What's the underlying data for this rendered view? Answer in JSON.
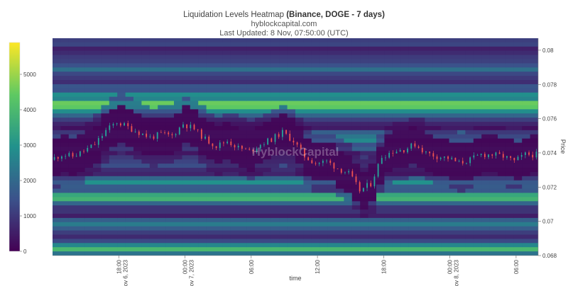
{
  "header": {
    "title_prefix": "Liquidation Levels Heatmap",
    "title_strong": "(Binance, DOGE - 7 days)",
    "site": "hyblockcapital.com",
    "updated": "Last Updated: 8 Nov, 07:50:00 (UTC)"
  },
  "watermark": "HyblockCapital",
  "chart_data": {
    "type": "heatmap",
    "xlabel": "time",
    "ylabel": "Price",
    "ylim": [
      0.068,
      0.0807
    ],
    "yticks": [
      "0.08",
      "0.078",
      "0.076",
      "0.074",
      "0.072",
      "0.07",
      "0.068"
    ],
    "xticks": [
      {
        "time": "18:00",
        "date": "Nov 6, 2023"
      },
      {
        "time": "00:00",
        "date": "Nov 7, 2023"
      },
      {
        "time": "06:00",
        "date": ""
      },
      {
        "time": "12:00",
        "date": ""
      },
      {
        "time": "18:00",
        "date": ""
      },
      {
        "time": "00:00",
        "date": "Nov 8, 2023"
      },
      {
        "time": "06:00",
        "date": ""
      }
    ],
    "colorbar": {
      "range": [
        0,
        5900
      ],
      "ticks": [
        "0",
        "1000",
        "2000",
        "3000",
        "4000",
        "5000"
      ],
      "colors": [
        "#440154",
        "#3b528b",
        "#21918c",
        "#5ec962",
        "#fde725"
      ]
    },
    "candles": {
      "interval": "1h",
      "start": "Nov 6, 2023 12:00",
      "end": "Nov 8, 2023 07:00"
    },
    "price_path": [
      {
        "t": "Nov 6 12:00",
        "p": 0.0736
      },
      {
        "t": "Nov 6 13:00",
        "p": 0.0739
      },
      {
        "t": "Nov 6 14:00",
        "p": 0.0738
      },
      {
        "t": "Nov 6 15:00",
        "p": 0.0741
      },
      {
        "t": "Nov 6 16:00",
        "p": 0.0745
      },
      {
        "t": "Nov 6 17:00",
        "p": 0.0753
      },
      {
        "t": "Nov 6 18:00",
        "p": 0.0758
      },
      {
        "t": "Nov 6 19:00",
        "p": 0.0755
      },
      {
        "t": "Nov 6 20:00",
        "p": 0.0752
      },
      {
        "t": "Nov 6 21:00",
        "p": 0.0749
      },
      {
        "t": "Nov 6 22:00",
        "p": 0.0751
      },
      {
        "t": "Nov 6 23:00",
        "p": 0.075
      },
      {
        "t": "Nov 7 00:00",
        "p": 0.0757
      },
      {
        "t": "Nov 7 01:00",
        "p": 0.0754
      },
      {
        "t": "Nov 7 02:00",
        "p": 0.0748
      },
      {
        "t": "Nov 7 03:00",
        "p": 0.0744
      },
      {
        "t": "Nov 7 04:00",
        "p": 0.0747
      },
      {
        "t": "Nov 7 05:00",
        "p": 0.0743
      },
      {
        "t": "Nov 7 06:00",
        "p": 0.0741
      },
      {
        "t": "Nov 7 07:00",
        "p": 0.0745
      },
      {
        "t": "Nov 7 08:00",
        "p": 0.0748
      },
      {
        "t": "Nov 7 09:00",
        "p": 0.0752
      },
      {
        "t": "Nov 7 10:00",
        "p": 0.0747
      },
      {
        "t": "Nov 7 11:00",
        "p": 0.0738
      },
      {
        "t": "Nov 7 12:00",
        "p": 0.0734
      },
      {
        "t": "Nov 7 13:00",
        "p": 0.0735
      },
      {
        "t": "Nov 7 14:00",
        "p": 0.0731
      },
      {
        "t": "Nov 7 15:00",
        "p": 0.0728
      },
      {
        "t": "Nov 7 16:00",
        "p": 0.0718
      },
      {
        "t": "Nov 7 17:00",
        "p": 0.0722
      },
      {
        "t": "Nov 7 18:00",
        "p": 0.0738
      },
      {
        "t": "Nov 7 19:00",
        "p": 0.0741
      },
      {
        "t": "Nov 7 20:00",
        "p": 0.0742
      },
      {
        "t": "Nov 7 21:00",
        "p": 0.0745
      },
      {
        "t": "Nov 7 22:00",
        "p": 0.074
      },
      {
        "t": "Nov 7 23:00",
        "p": 0.0738
      },
      {
        "t": "Nov 8 00:00",
        "p": 0.0737
      },
      {
        "t": "Nov 8 01:00",
        "p": 0.0734
      },
      {
        "t": "Nov 8 02:00",
        "p": 0.0736
      },
      {
        "t": "Nov 8 03:00",
        "p": 0.0739
      },
      {
        "t": "Nov 8 04:00",
        "p": 0.0739
      },
      {
        "t": "Nov 8 05:00",
        "p": 0.0738
      },
      {
        "t": "Nov 8 06:00",
        "p": 0.0735
      },
      {
        "t": "Nov 8 07:00",
        "p": 0.0739
      }
    ],
    "liquidation_bands": [
      {
        "price": 0.0768,
        "value": 5600
      },
      {
        "price": 0.0773,
        "value": 3500
      },
      {
        "price": 0.0764,
        "value": 3000
      },
      {
        "price": 0.0748,
        "value": 3200
      },
      {
        "price": 0.0723,
        "value": 3100
      },
      {
        "price": 0.0714,
        "value": 4600
      },
      {
        "price": 0.0698,
        "value": 2600
      },
      {
        "price": 0.0684,
        "value": 4200
      },
      {
        "price": 0.0789,
        "value": 2300
      }
    ]
  }
}
